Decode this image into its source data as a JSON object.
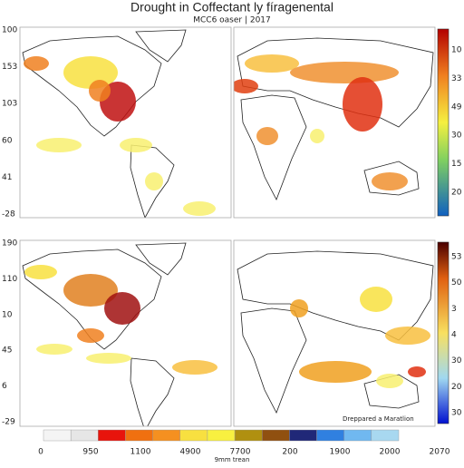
{
  "header": {
    "title": "Drought in Coffectant ly fíragenental",
    "subtitle": "MCC6 oaser | 2017"
  },
  "top_panel": {
    "row_labels": [
      "100",
      "153",
      "103",
      "60",
      "41",
      "-28"
    ],
    "colorbar_labels": [
      "10",
      "33",
      "49",
      "30",
      "15",
      "20"
    ]
  },
  "bottom_panel": {
    "row_labels": [
      "190",
      "110",
      "10",
      "45",
      "6",
      "-29"
    ],
    "colorbar_labels": [
      "53",
      "50",
      "3",
      "4",
      "30",
      "20",
      "30"
    ],
    "annotation": "Dreppared a Maratlion"
  },
  "legend": {
    "labels": [
      "0",
      "950",
      "1100",
      "4900",
      "7700",
      "200",
      "1900",
      "2000",
      "2070"
    ],
    "caption": "9mm trean"
  }
}
